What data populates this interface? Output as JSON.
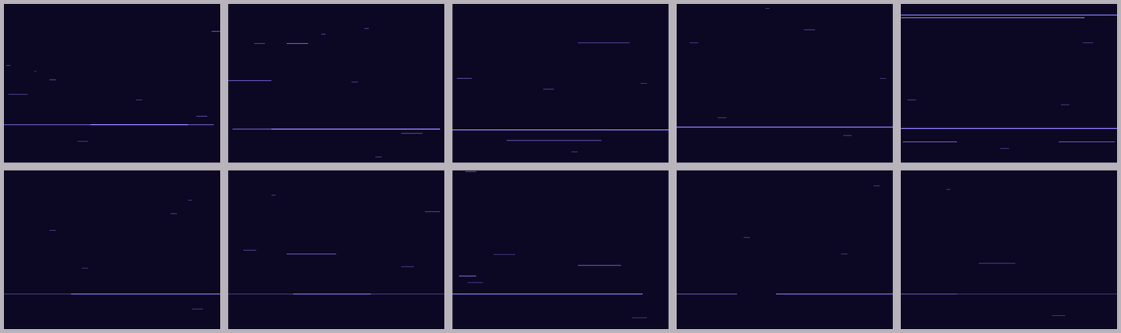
{
  "chart_data": [
    {
      "type": "heatmap",
      "xlim": [
        0,
        100
      ],
      "ylim": [
        0,
        100
      ],
      "tick_labels": false,
      "color": "#8c7cf8",
      "streaks": [
        {
          "y": 76,
          "x0": 0,
          "x1": 97,
          "power": 0.5
        },
        {
          "y": 76,
          "x0": 40,
          "x1": 85,
          "power": 0.85
        },
        {
          "y": 17.1,
          "x0": 96,
          "x1": 100,
          "power": 0.5
        },
        {
          "y": 70.7,
          "x0": 89,
          "x1": 94,
          "power": 0.45
        },
        {
          "y": 60.4,
          "x0": 61,
          "x1": 64,
          "power": 0.35
        },
        {
          "y": 47.7,
          "x0": 21,
          "x1": 24,
          "power": 0.35
        },
        {
          "y": 42.3,
          "x0": 14,
          "x1": 15,
          "power": 0.3
        },
        {
          "y": 38.7,
          "x0": 1,
          "x1": 3,
          "power": 0.3
        },
        {
          "y": 56.8,
          "x0": 2,
          "x1": 11,
          "power": 0.3
        },
        {
          "y": 86.5,
          "x0": 34,
          "x1": 39,
          "power": 0.3
        }
      ]
    },
    {
      "type": "heatmap",
      "xlim": [
        0,
        100
      ],
      "ylim": [
        0,
        100
      ],
      "tick_labels": false,
      "color": "#8c7cf8",
      "streaks": [
        {
          "y": 78.8,
          "x0": 2,
          "x1": 98,
          "power": 0.5
        },
        {
          "y": 78.8,
          "x0": 20,
          "x1": 98,
          "power": 0.85
        },
        {
          "y": 48.2,
          "x0": 0,
          "x1": 20,
          "power": 0.55
        },
        {
          "y": 24.8,
          "x0": 12,
          "x1": 17,
          "power": 0.4
        },
        {
          "y": 24.8,
          "x0": 27,
          "x1": 37,
          "power": 0.6
        },
        {
          "y": 18.9,
          "x0": 43,
          "x1": 45,
          "power": 0.4
        },
        {
          "y": 15.3,
          "x0": 63,
          "x1": 65,
          "power": 0.35
        },
        {
          "y": 81.5,
          "x0": 80,
          "x1": 90,
          "power": 0.35
        },
        {
          "y": 96.4,
          "x0": 68,
          "x1": 71,
          "power": 0.3
        },
        {
          "y": 49.1,
          "x0": 57,
          "x1": 60,
          "power": 0.3
        }
      ]
    },
    {
      "type": "heatmap",
      "xlim": [
        0,
        100
      ],
      "ylim": [
        0,
        100
      ],
      "tick_labels": false,
      "color": "#8c7cf8",
      "streaks": [
        {
          "y": 79.3,
          "x0": 0,
          "x1": 100,
          "power": 0.95
        },
        {
          "y": 86,
          "x0": 25,
          "x1": 69,
          "power": 0.4
        },
        {
          "y": 46.8,
          "x0": 2,
          "x1": 9,
          "power": 0.45
        },
        {
          "y": 24.3,
          "x0": 58,
          "x1": 82,
          "power": 0.35
        },
        {
          "y": 53.6,
          "x0": 42,
          "x1": 47,
          "power": 0.3
        },
        {
          "y": 93.2,
          "x0": 55,
          "x1": 58,
          "power": 0.3
        },
        {
          "y": 50,
          "x0": 87,
          "x1": 90,
          "power": 0.3
        }
      ]
    },
    {
      "type": "heatmap",
      "xlim": [
        0,
        100
      ],
      "ylim": [
        0,
        100
      ],
      "tick_labels": false,
      "color": "#8c7cf8",
      "streaks": [
        {
          "y": 77.5,
          "x0": 0,
          "x1": 100,
          "power": 0.8
        },
        {
          "y": 16.2,
          "x0": 59,
          "x1": 64,
          "power": 0.35
        },
        {
          "y": 46.8,
          "x0": 94,
          "x1": 97,
          "power": 0.3
        },
        {
          "y": 24.3,
          "x0": 6,
          "x1": 10,
          "power": 0.3
        },
        {
          "y": 71.6,
          "x0": 19,
          "x1": 23,
          "power": 0.3
        },
        {
          "y": 82.9,
          "x0": 77,
          "x1": 81,
          "power": 0.3
        },
        {
          "y": 2.7,
          "x0": 41,
          "x1": 43,
          "power": 0.3
        }
      ]
    },
    {
      "type": "heatmap",
      "xlim": [
        0,
        100
      ],
      "ylim": [
        0,
        100
      ],
      "tick_labels": false,
      "color": "#8c7cf8",
      "streaks": [
        {
          "y": 6.8,
          "x0": 0,
          "x1": 100,
          "power": 0.85
        },
        {
          "y": 8.6,
          "x0": 0,
          "x1": 85,
          "power": 0.75
        },
        {
          "y": 78.4,
          "x0": 0,
          "x1": 100,
          "power": 0.85
        },
        {
          "y": 86.9,
          "x0": 1,
          "x1": 26,
          "power": 0.6
        },
        {
          "y": 86.9,
          "x0": 73,
          "x1": 99,
          "power": 0.55
        },
        {
          "y": 24.3,
          "x0": 84,
          "x1": 89,
          "power": 0.3
        },
        {
          "y": 60.4,
          "x0": 3,
          "x1": 7,
          "power": 0.35
        },
        {
          "y": 63.5,
          "x0": 74,
          "x1": 78,
          "power": 0.3
        },
        {
          "y": 91,
          "x0": 46,
          "x1": 50,
          "power": 0.3
        }
      ]
    },
    {
      "type": "heatmap",
      "xlim": [
        0,
        100
      ],
      "ylim": [
        0,
        100
      ],
      "tick_labels": false,
      "color": "#8c7cf8",
      "streaks": [
        {
          "y": 77.8,
          "x0": 0,
          "x1": 100,
          "power": 0.35
        },
        {
          "y": 77.8,
          "x0": 31,
          "x1": 100,
          "power": 0.8
        },
        {
          "y": 27.1,
          "x0": 77,
          "x1": 80,
          "power": 0.3
        },
        {
          "y": 18.6,
          "x0": 85,
          "x1": 87,
          "power": 0.3
        },
        {
          "y": 37.6,
          "x0": 21,
          "x1": 24,
          "power": 0.3
        },
        {
          "y": 61.5,
          "x0": 36,
          "x1": 39,
          "power": 0.3
        },
        {
          "y": 87.3,
          "x0": 87,
          "x1": 92,
          "power": 0.3
        }
      ]
    },
    {
      "type": "heatmap",
      "xlim": [
        0,
        100
      ],
      "ylim": [
        0,
        100
      ],
      "tick_labels": false,
      "color": "#8c7cf8",
      "streaks": [
        {
          "y": 77.8,
          "x0": 0,
          "x1": 100,
          "power": 0.35
        },
        {
          "y": 77.8,
          "x0": 30,
          "x1": 66,
          "power": 0.75
        },
        {
          "y": 52.5,
          "x0": 27,
          "x1": 50,
          "power": 0.5
        },
        {
          "y": 50.2,
          "x0": 7,
          "x1": 13,
          "power": 0.35
        },
        {
          "y": 25.8,
          "x0": 91,
          "x1": 98,
          "power": 0.35
        },
        {
          "y": 15.4,
          "x0": 20,
          "x1": 22,
          "power": 0.3
        },
        {
          "y": 60.6,
          "x0": 80,
          "x1": 86,
          "power": 0.3
        }
      ]
    },
    {
      "type": "heatmap",
      "xlim": [
        0,
        100
      ],
      "ylim": [
        0,
        100
      ],
      "tick_labels": false,
      "color": "#8c7cf8",
      "streaks": [
        {
          "y": 77.8,
          "x0": 0,
          "x1": 88,
          "power": 0.85
        },
        {
          "y": 66.5,
          "x0": 3,
          "x1": 11,
          "power": 0.6
        },
        {
          "y": 59.7,
          "x0": 58,
          "x1": 78,
          "power": 0.45
        },
        {
          "y": 0.5,
          "x0": 6,
          "x1": 11,
          "power": 0.4
        },
        {
          "y": 52.9,
          "x0": 19,
          "x1": 29,
          "power": 0.3
        },
        {
          "y": 70.6,
          "x0": 7,
          "x1": 14,
          "power": 0.3
        },
        {
          "y": 92.8,
          "x0": 83,
          "x1": 90,
          "power": 0.3
        }
      ]
    },
    {
      "type": "heatmap",
      "xlim": [
        0,
        100
      ],
      "ylim": [
        0,
        100
      ],
      "tick_labels": false,
      "color": "#8c7cf8",
      "streaks": [
        {
          "y": 77.8,
          "x0": 0,
          "x1": 28,
          "power": 0.5
        },
        {
          "y": 77.8,
          "x0": 46,
          "x1": 100,
          "power": 0.75
        },
        {
          "y": 42.1,
          "x0": 31,
          "x1": 34,
          "power": 0.3
        },
        {
          "y": 9.5,
          "x0": 91,
          "x1": 94,
          "power": 0.3
        },
        {
          "y": 52.5,
          "x0": 76,
          "x1": 79,
          "power": 0.3
        }
      ]
    },
    {
      "type": "heatmap",
      "xlim": [
        0,
        100
      ],
      "ylim": [
        0,
        100
      ],
      "tick_labels": false,
      "color": "#8c7cf8",
      "streaks": [
        {
          "y": 77.8,
          "x0": 0,
          "x1": 100,
          "power": 0.3
        },
        {
          "y": 77.8,
          "x0": 0,
          "x1": 26,
          "power": 0.5
        },
        {
          "y": 58.4,
          "x0": 36,
          "x1": 53,
          "power": 0.3
        },
        {
          "y": 91.4,
          "x0": 70,
          "x1": 76,
          "power": 0.3
        },
        {
          "y": 11.8,
          "x0": 21,
          "x1": 23,
          "power": 0.3
        }
      ]
    }
  ]
}
